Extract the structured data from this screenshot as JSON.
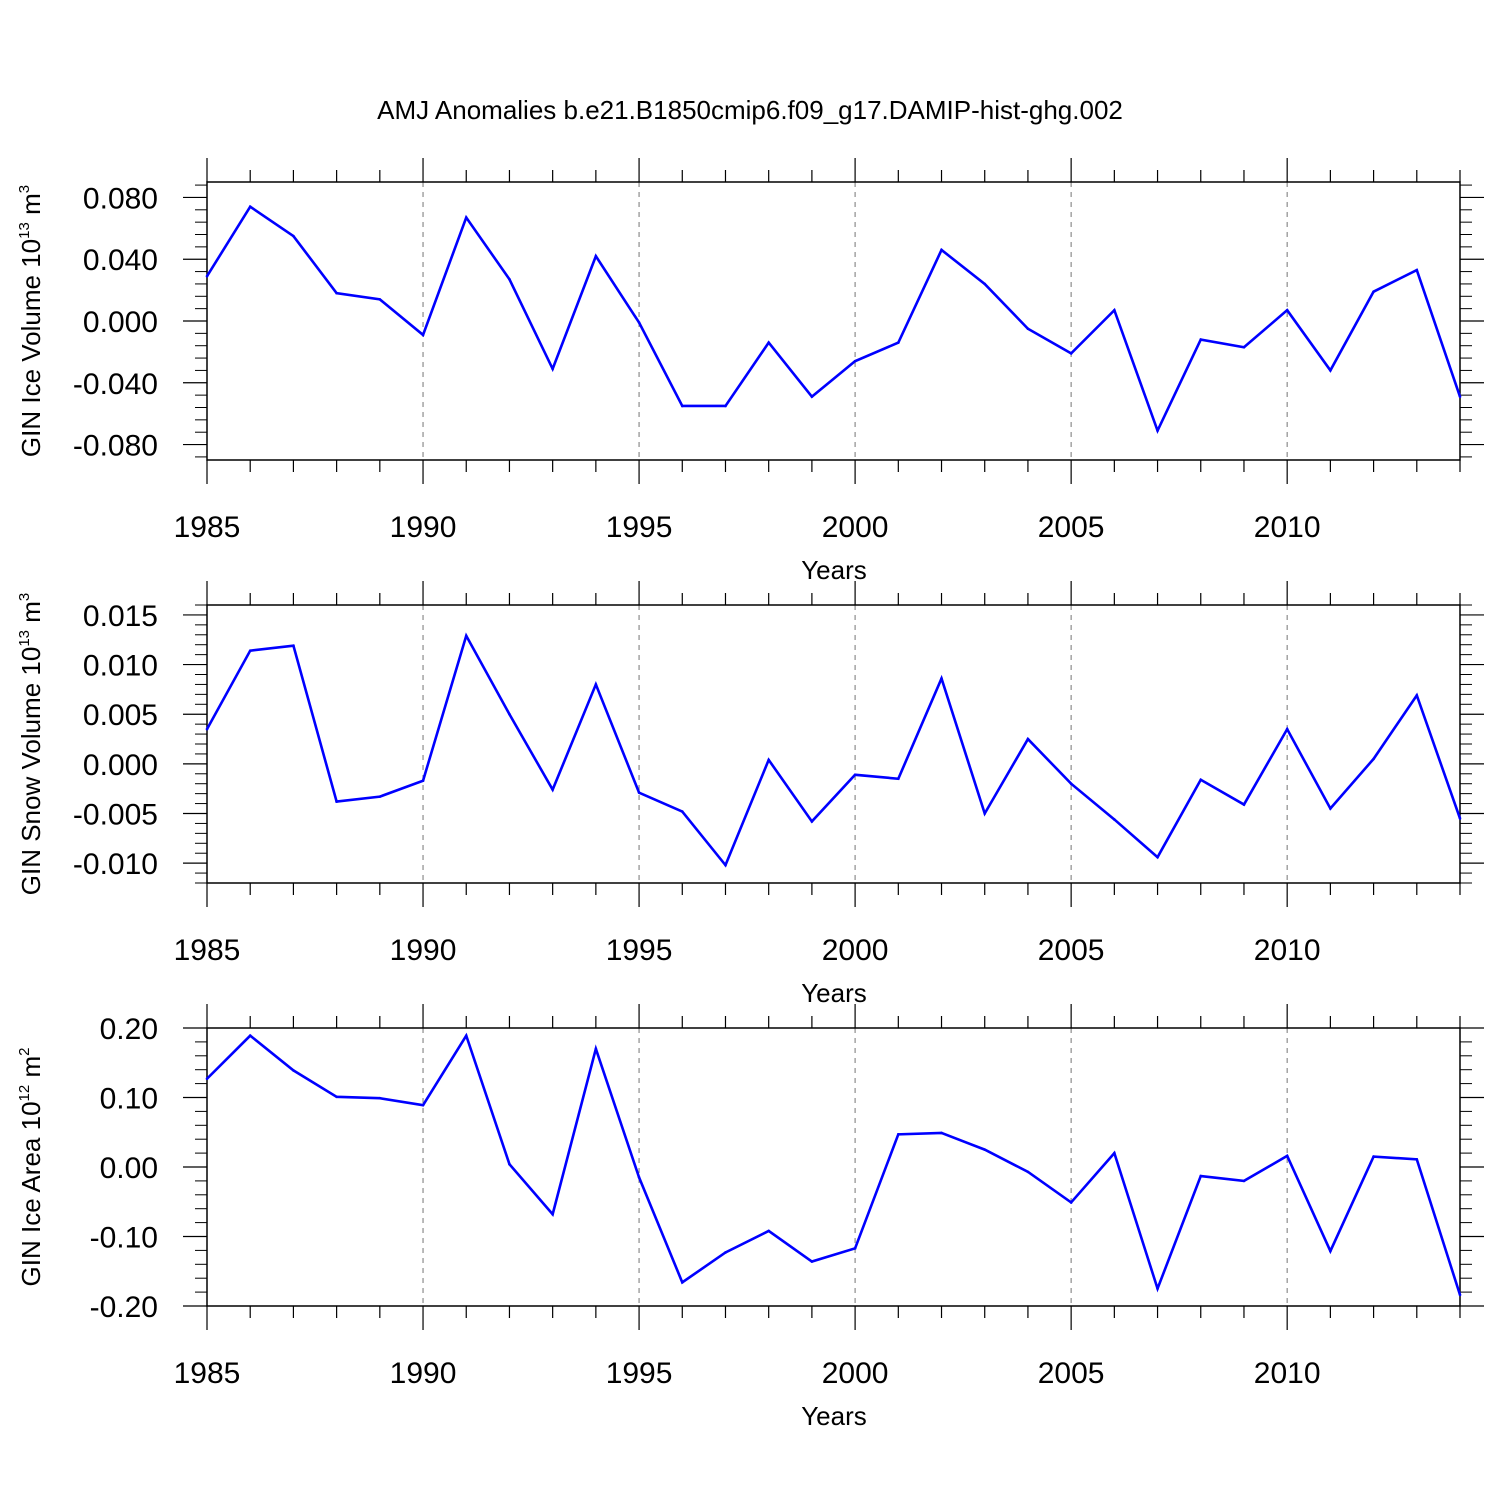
{
  "title": "AMJ Anomalies b.e21.B1850cmip6.f09_g17.DAMIP-hist-ghg.002",
  "chart_data": [
    {
      "type": "line",
      "ylabel": {
        "main": "GIN Ice Volume 10",
        "exp": "13",
        "unit": " m",
        "unit_exp": "3"
      },
      "xlabel": "Years",
      "xlim": [
        1985,
        2014
      ],
      "ylim": [
        -0.09,
        0.09
      ],
      "xticks": [
        1985,
        1990,
        1995,
        2000,
        2005,
        2010
      ],
      "xtick_labels": [
        "1985",
        "1990",
        "1995",
        "2000",
        "2005",
        "2010"
      ],
      "yticks": [
        0.08,
        0.04,
        0.0,
        -0.04,
        -0.08
      ],
      "ytick_labels": [
        "0.080",
        "0.040",
        "0.000",
        "-0.040",
        "-0.080"
      ],
      "x": [
        1985,
        1986,
        1987,
        1988,
        1989,
        1990,
        1991,
        1992,
        1993,
        1994,
        1995,
        1996,
        1997,
        1998,
        1999,
        2000,
        2001,
        2002,
        2003,
        2004,
        2005,
        2006,
        2007,
        2008,
        2009,
        2010,
        2011,
        2012,
        2013,
        2014
      ],
      "series": [
        {
          "name": "GIN Ice Volume",
          "color": "#0000ff",
          "values": [
            0.029,
            0.074,
            0.055,
            0.018,
            0.014,
            -0.009,
            0.067,
            0.027,
            -0.031,
            0.042,
            -0.001,
            -0.055,
            -0.055,
            -0.014,
            -0.049,
            -0.026,
            -0.014,
            0.046,
            0.024,
            -0.005,
            -0.021,
            0.007,
            -0.071,
            -0.012,
            -0.017,
            0.007,
            -0.032,
            0.019,
            0.033,
            -0.049
          ]
        }
      ],
      "grid_x": "dashed vertical at major ticks"
    },
    {
      "type": "line",
      "ylabel": {
        "main": "GIN Snow Volume 10",
        "exp": "13",
        "unit": " m",
        "unit_exp": "3"
      },
      "xlabel": "Years",
      "xlim": [
        1985,
        2014
      ],
      "ylim": [
        -0.012,
        0.016
      ],
      "xticks": [
        1985,
        1990,
        1995,
        2000,
        2005,
        2010
      ],
      "xtick_labels": [
        "1985",
        "1990",
        "1995",
        "2000",
        "2005",
        "2010"
      ],
      "yticks": [
        0.015,
        0.01,
        0.005,
        0.0,
        -0.005,
        -0.01
      ],
      "ytick_labels": [
        "0.015",
        "0.010",
        "0.005",
        "0.000",
        "-0.005",
        "-0.010"
      ],
      "x": [
        1985,
        1986,
        1987,
        1988,
        1989,
        1990,
        1991,
        1992,
        1993,
        1994,
        1995,
        1996,
        1997,
        1998,
        1999,
        2000,
        2001,
        2002,
        2003,
        2004,
        2005,
        2006,
        2007,
        2008,
        2009,
        2010,
        2011,
        2012,
        2013,
        2014
      ],
      "series": [
        {
          "name": "GIN Snow Volume",
          "color": "#0000ff",
          "values": [
            0.0035,
            0.0114,
            0.0119,
            -0.0038,
            -0.0033,
            -0.0017,
            0.0129,
            0.005,
            -0.0026,
            0.008,
            -0.0029,
            -0.0048,
            -0.0102,
            0.0004,
            -0.0058,
            -0.0011,
            -0.0015,
            0.0086,
            -0.005,
            0.0025,
            -0.002,
            -0.0056,
            -0.0094,
            -0.0016,
            -0.0041,
            0.0035,
            -0.0045,
            0.0005,
            0.0069,
            -0.0055
          ]
        }
      ],
      "grid_x": "dashed vertical at major ticks"
    },
    {
      "type": "line",
      "ylabel": {
        "main": "GIN Ice Area 10",
        "exp": "12",
        "unit": " m",
        "unit_exp": "2"
      },
      "xlabel": "Years",
      "xlim": [
        1985,
        2014
      ],
      "ylim": [
        -0.2,
        0.2
      ],
      "xticks": [
        1985,
        1990,
        1995,
        2000,
        2005,
        2010
      ],
      "xtick_labels": [
        "1985",
        "1990",
        "1995",
        "2000",
        "2005",
        "2010"
      ],
      "yticks": [
        0.2,
        0.1,
        0.0,
        -0.1,
        -0.2
      ],
      "ytick_labels": [
        "0.20",
        "0.10",
        "0.00",
        "-0.10",
        "-0.20"
      ],
      "x": [
        1985,
        1986,
        1987,
        1988,
        1989,
        1990,
        1991,
        1992,
        1993,
        1994,
        1995,
        1996,
        1997,
        1998,
        1999,
        2000,
        2001,
        2002,
        2003,
        2004,
        2005,
        2006,
        2007,
        2008,
        2009,
        2010,
        2011,
        2012,
        2013,
        2014
      ],
      "series": [
        {
          "name": "GIN Ice Area",
          "color": "#0000ff",
          "values": [
            0.127,
            0.189,
            0.139,
            0.101,
            0.099,
            0.089,
            0.189,
            0.004,
            -0.068,
            0.17,
            -0.015,
            -0.166,
            -0.123,
            -0.092,
            -0.136,
            -0.117,
            0.047,
            0.049,
            0.025,
            -0.007,
            -0.051,
            0.02,
            -0.175,
            -0.013,
            -0.02,
            0.016,
            -0.121,
            0.015,
            0.011,
            -0.184
          ]
        }
      ],
      "grid_x": "dashed vertical at major ticks"
    }
  ]
}
